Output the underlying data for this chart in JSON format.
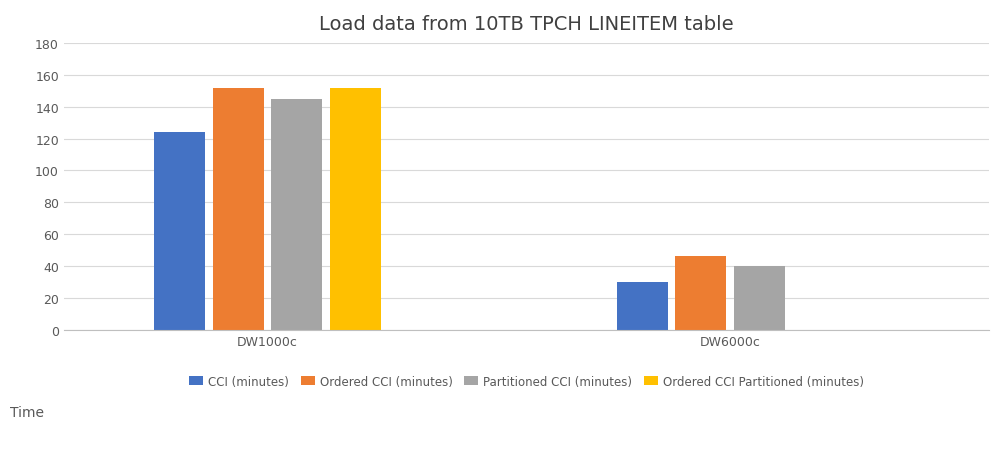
{
  "title": "Load data from 10TB TPCH LINEITEM table",
  "categories": [
    "DW1000c",
    "DW6000c"
  ],
  "series": [
    {
      "label": "CCI (minutes)",
      "color": "#4472C4",
      "values": [
        124,
        30
      ]
    },
    {
      "label": "Ordered CCI (minutes)",
      "color": "#ED7D31",
      "values": [
        152,
        46
      ]
    },
    {
      "label": "Partitioned CCI (minutes)",
      "color": "#A5A5A5",
      "values": [
        145,
        40
      ]
    },
    {
      "label": "Ordered CCI Partitioned (minutes)",
      "color": "#FFC000",
      "values": [
        152,
        null
      ]
    }
  ],
  "time_label": "Time",
  "ylim": [
    0,
    180
  ],
  "yticks": [
    0,
    20,
    40,
    60,
    80,
    100,
    120,
    140,
    160,
    180
  ],
  "background_color": "#FFFFFF",
  "grid_color": "#D9D9D9",
  "title_fontsize": 14,
  "tick_fontsize": 9,
  "legend_fontsize": 8.5,
  "bar_width": 0.055,
  "group_centers": [
    0.22,
    0.72
  ],
  "xlim": [
    0.0,
    1.0
  ]
}
